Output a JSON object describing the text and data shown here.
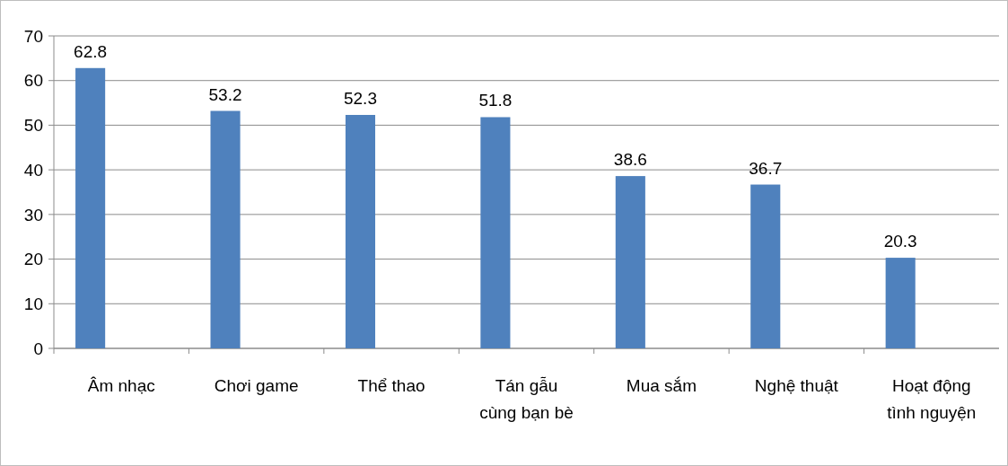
{
  "chart_data": {
    "type": "bar",
    "categories": [
      "Âm nhạc",
      "Chơi game",
      "Thể thao",
      "Tán gẫu cùng bạn bè",
      "Mua sắm",
      "Nghệ thuật",
      "Hoạt động tình nguyện"
    ],
    "values": [
      62.8,
      53.2,
      52.3,
      51.8,
      38.6,
      36.7,
      20.3
    ],
    "color": "#4f81bd",
    "ylim": [
      0,
      70
    ],
    "yticks": [
      0,
      10,
      20,
      30,
      40,
      50,
      60,
      70
    ],
    "grid": "y",
    "data_labels": true
  }
}
